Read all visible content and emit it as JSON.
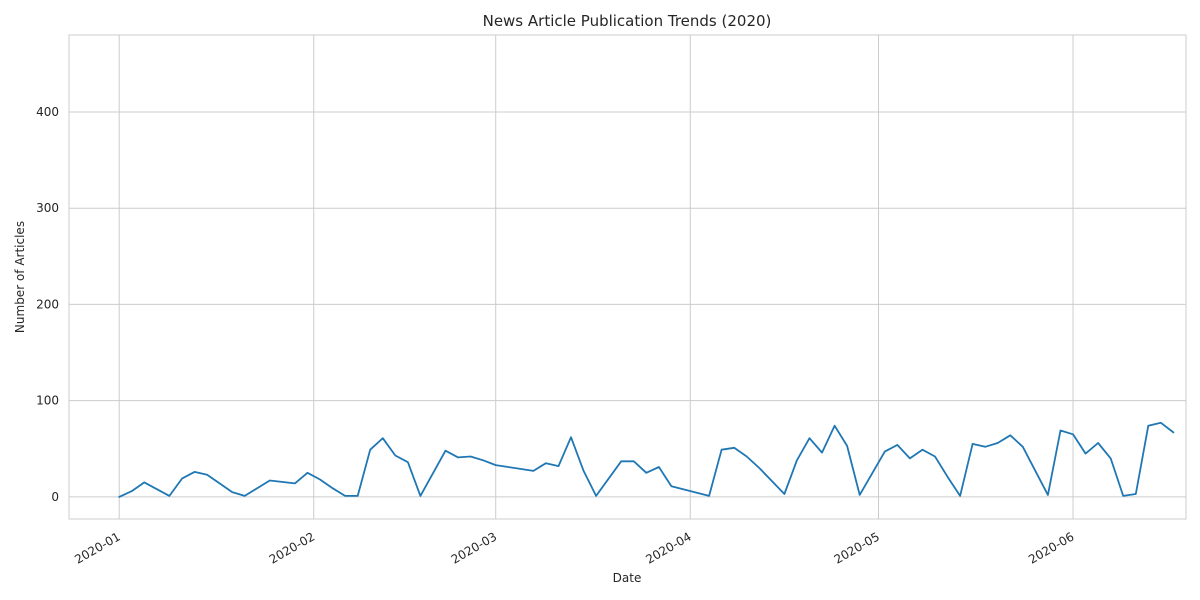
{
  "chart_data": {
    "type": "line",
    "title": "News Article Publication Trends (2020)",
    "xlabel": "Date",
    "ylabel": "Number of Articles",
    "x_tick_labels": [
      "2020-01",
      "2020-02",
      "2020-03",
      "2020-04",
      "2020-05",
      "2020-06"
    ],
    "y_tick_labels": [
      "0",
      "100",
      "200",
      "300",
      "400"
    ],
    "y_ticks": [
      0,
      100,
      200,
      300,
      400
    ],
    "xlim": [
      "2019-12-24",
      "2020-06-19"
    ],
    "ylim": [
      -23,
      480
    ],
    "grid": true,
    "series_color": "#1f77b4",
    "series": [
      {
        "points": [
          [
            "2020-01-01",
            0
          ],
          [
            "2020-01-03",
            6
          ],
          [
            "2020-01-05",
            15
          ],
          [
            "2020-01-07",
            8
          ],
          [
            "2020-01-09",
            1
          ],
          [
            "2020-01-11",
            19
          ],
          [
            "2020-01-13",
            26
          ],
          [
            "2020-01-15",
            23
          ],
          [
            "2020-01-17",
            14
          ],
          [
            "2020-01-19",
            5
          ],
          [
            "2020-01-21",
            1
          ],
          [
            "2020-01-25",
            17
          ],
          [
            "2020-01-29",
            14
          ],
          [
            "2020-01-31",
            25
          ],
          [
            "2020-02-02",
            18
          ],
          [
            "2020-02-04",
            9
          ],
          [
            "2020-02-06",
            1
          ],
          [
            "2020-02-08",
            1
          ],
          [
            "2020-02-10",
            49
          ],
          [
            "2020-02-12",
            61
          ],
          [
            "2020-02-14",
            43
          ],
          [
            "2020-02-16",
            36
          ],
          [
            "2020-02-18",
            1
          ],
          [
            "2020-02-22",
            48
          ],
          [
            "2020-02-24",
            41
          ],
          [
            "2020-02-26",
            42
          ],
          [
            "2020-02-28",
            38
          ],
          [
            "2020-03-01",
            33
          ],
          [
            "2020-03-07",
            27
          ],
          [
            "2020-03-09",
            35
          ],
          [
            "2020-03-11",
            32
          ],
          [
            "2020-03-13",
            62
          ],
          [
            "2020-03-15",
            27
          ],
          [
            "2020-03-17",
            1
          ],
          [
            "2020-03-21",
            37
          ],
          [
            "2020-03-23",
            37
          ],
          [
            "2020-03-25",
            25
          ],
          [
            "2020-03-27",
            31
          ],
          [
            "2020-03-29",
            11
          ],
          [
            "2020-04-04",
            1
          ],
          [
            "2020-04-06",
            49
          ],
          [
            "2020-04-08",
            51
          ],
          [
            "2020-04-10",
            42
          ],
          [
            "2020-04-12",
            30
          ],
          [
            "2020-04-16",
            3
          ],
          [
            "2020-04-18",
            38
          ],
          [
            "2020-04-20",
            61
          ],
          [
            "2020-04-22",
            46
          ],
          [
            "2020-04-24",
            74
          ],
          [
            "2020-04-26",
            53
          ],
          [
            "2020-04-28",
            2
          ],
          [
            "2020-05-02",
            47
          ],
          [
            "2020-05-04",
            54
          ],
          [
            "2020-05-06",
            40
          ],
          [
            "2020-05-08",
            49
          ],
          [
            "2020-05-10",
            42
          ],
          [
            "2020-05-12",
            21
          ],
          [
            "2020-05-14",
            1
          ],
          [
            "2020-05-16",
            55
          ],
          [
            "2020-05-18",
            52
          ],
          [
            "2020-05-20",
            56
          ],
          [
            "2020-05-22",
            64
          ],
          [
            "2020-05-24",
            52
          ],
          [
            "2020-05-28",
            2
          ],
          [
            "2020-05-30",
            69
          ],
          [
            "2020-06-01",
            65
          ],
          [
            "2020-06-03",
            45
          ],
          [
            "2020-06-05",
            56
          ],
          [
            "2020-06-07",
            40
          ],
          [
            "2020-06-09",
            1
          ],
          [
            "2020-06-11",
            3
          ],
          [
            "2020-06-13",
            74
          ],
          [
            "2020-06-15",
            77
          ],
          [
            "2020-06-17",
            67
          ]
        ]
      }
    ]
  }
}
